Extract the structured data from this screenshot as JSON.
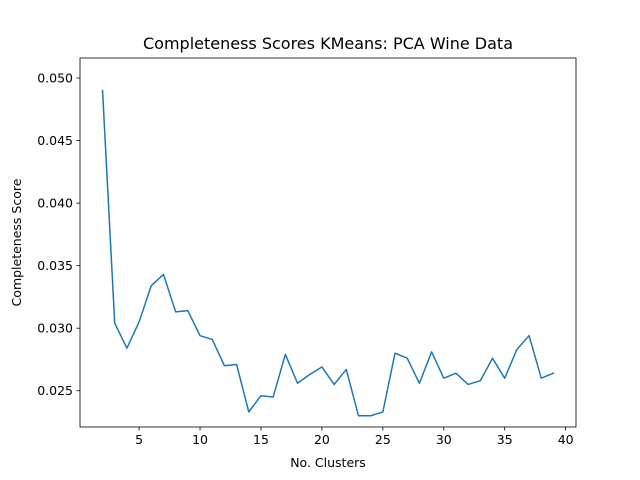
{
  "chart_data": {
    "type": "line",
    "title": "Completeness Scores KMeans: PCA Wine Data",
    "xlabel": "No. Clusters",
    "ylabel": "Completeness Score",
    "xlim": [
      0.15,
      40.85
    ],
    "ylim": [
      0.0221,
      0.0516
    ],
    "xticks": [
      5,
      10,
      15,
      20,
      25,
      30,
      35,
      40
    ],
    "xtick_labels": [
      "5",
      "10",
      "15",
      "20",
      "25",
      "30",
      "35",
      "40"
    ],
    "yticks": [
      0.025,
      0.03,
      0.035,
      0.04,
      0.045,
      0.05
    ],
    "ytick_labels": [
      "0.025",
      "0.030",
      "0.035",
      "0.040",
      "0.045",
      "0.050"
    ],
    "grid": false,
    "legend": "none",
    "series": [
      {
        "color": "#1f77b4",
        "x": [
          2,
          3,
          4,
          5,
          6,
          7,
          8,
          9,
          10,
          11,
          12,
          13,
          14,
          15,
          16,
          17,
          18,
          19,
          20,
          21,
          22,
          23,
          24,
          25,
          26,
          27,
          28,
          29,
          30,
          31,
          32,
          33,
          34,
          35,
          36,
          37,
          38,
          39
        ],
        "y": [
          0.049,
          0.0304,
          0.0284,
          0.0305,
          0.0334,
          0.0343,
          0.0313,
          0.0314,
          0.0294,
          0.0291,
          0.027,
          0.0271,
          0.0233,
          0.0246,
          0.0245,
          0.0279,
          0.0256,
          0.0263,
          0.0269,
          0.0255,
          0.0267,
          0.023,
          0.023,
          0.0233,
          0.028,
          0.0276,
          0.0256,
          0.0281,
          0.026,
          0.0264,
          0.0255,
          0.0258,
          0.0276,
          0.026,
          0.0283,
          0.0294,
          0.026,
          0.0264
        ]
      }
    ]
  }
}
